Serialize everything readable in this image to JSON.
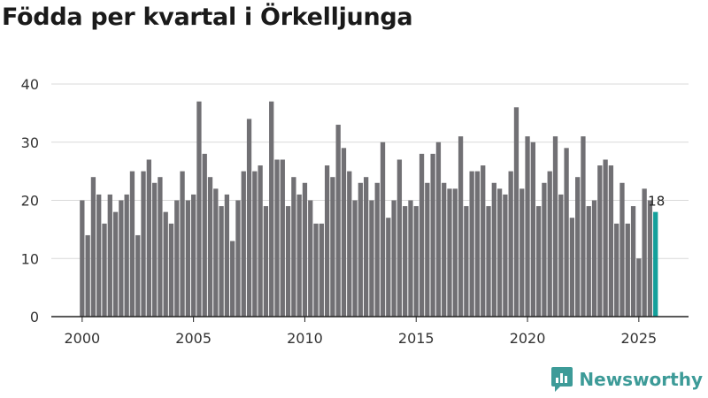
{
  "title": "Födda per kvartal i Örkelljunga",
  "brand": {
    "name": "Newsworthy",
    "logo_icon": "bar-chart-speech-bubble"
  },
  "colors": {
    "bar": "#717074",
    "highlight": "#14a09b",
    "grid": "#d9d9d9",
    "axis": "#222222",
    "brand": "#3d9b98"
  },
  "chart_data": {
    "type": "bar",
    "title": "Födda per kvartal i Örkelljunga",
    "xlabel": "",
    "ylabel": "",
    "x_start": 2000,
    "quarters_per_year": 4,
    "xticks": [
      2000,
      2005,
      2010,
      2015,
      2020,
      2025
    ],
    "yticks": [
      0,
      10,
      20,
      30,
      40
    ],
    "ylim": [
      0,
      40
    ],
    "grid": true,
    "highlight_last": true,
    "annotation": {
      "label": "18",
      "target": "last"
    },
    "values": [
      20,
      14,
      24,
      21,
      16,
      21,
      18,
      20,
      21,
      25,
      14,
      25,
      27,
      23,
      24,
      18,
      16,
      20,
      25,
      20,
      21,
      37,
      28,
      24,
      22,
      19,
      21,
      13,
      20,
      25,
      34,
      25,
      26,
      19,
      37,
      27,
      27,
      19,
      24,
      21,
      23,
      20,
      16,
      16,
      26,
      24,
      33,
      29,
      25,
      20,
      23,
      24,
      20,
      23,
      30,
      17,
      20,
      27,
      19,
      20,
      19,
      28,
      23,
      28,
      30,
      23,
      22,
      22,
      31,
      19,
      25,
      25,
      26,
      19,
      23,
      22,
      21,
      25,
      36,
      22,
      31,
      30,
      19,
      23,
      25,
      31,
      21,
      29,
      17,
      24,
      31,
      19,
      20,
      26,
      27,
      26,
      16,
      23,
      16,
      19,
      10,
      22,
      20,
      18
    ]
  }
}
